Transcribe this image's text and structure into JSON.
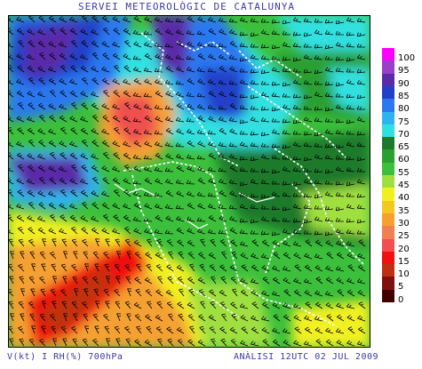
{
  "title": "SERVEI METEOROLÒGIC DE CATALUNYA",
  "footer": {
    "variables": "V(kt) I RH(%) 700hPa",
    "analysis": "ANÀLISI 12UTC 02 JUL 2009"
  },
  "legend": {
    "items": [
      {
        "label": "100",
        "color": "#ff00ff"
      },
      {
        "label": "95",
        "color": "#9a3fc8"
      },
      {
        "label": "90",
        "color": "#5a2aa8"
      },
      {
        "label": "85",
        "color": "#2040c8"
      },
      {
        "label": "80",
        "color": "#2a78f0"
      },
      {
        "label": "75",
        "color": "#2fb4f0"
      },
      {
        "label": "70",
        "color": "#30e0e0"
      },
      {
        "label": "65",
        "color": "#1c7a2a"
      },
      {
        "label": "60",
        "color": "#2aa030"
      },
      {
        "label": "55",
        "color": "#3cc03c"
      },
      {
        "label": "45",
        "color": "#9fe040"
      },
      {
        "label": "40",
        "color": "#f0f020"
      },
      {
        "label": "35",
        "color": "#f5c820"
      },
      {
        "label": "30",
        "color": "#f5a030"
      },
      {
        "label": "25",
        "color": "#f08050"
      },
      {
        "label": "20",
        "color": "#f05050"
      },
      {
        "label": "15",
        "color": "#f01010"
      },
      {
        "label": "10",
        "color": "#c03010"
      },
      {
        "label": "5",
        "color": "#801010"
      },
      {
        "label": "0",
        "color": "#400000"
      }
    ]
  }
}
